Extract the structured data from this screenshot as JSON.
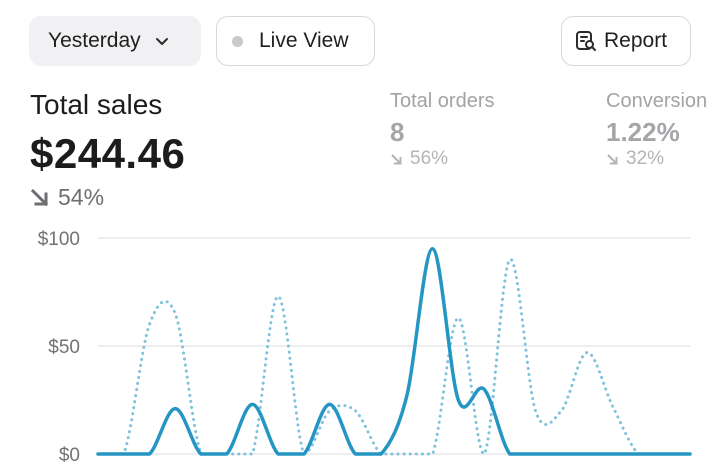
{
  "toolbar": {
    "date_range": "Yesterday",
    "live_view": "Live View",
    "report": "Report"
  },
  "metrics": {
    "total_sales": {
      "label": "Total sales",
      "value": "$244.46",
      "change": "54%",
      "direction": "down"
    },
    "total_orders": {
      "label": "Total orders",
      "value": "8",
      "change": "56%",
      "direction": "down"
    },
    "conversion": {
      "label": "Conversion",
      "value": "1.22%",
      "change": "32%",
      "direction": "down"
    }
  },
  "colors": {
    "series_current": "#2596c4",
    "series_previous": "#7dc2dc",
    "grid": "#e3e3e6"
  },
  "icons": {
    "date_chevron": "chevron-down-icon",
    "live_dot": "status-dot-icon",
    "report": "report-search-icon",
    "trend": "arrow-down-right-icon"
  },
  "chart_data": {
    "type": "line",
    "y_tick_labels": [
      "$100",
      "$50",
      "$0"
    ],
    "ylim": [
      0,
      100
    ],
    "xlim": [
      0,
      23
    ],
    "grid": true,
    "series": [
      {
        "style": "solid",
        "x": [
          0,
          1,
          2,
          3,
          4,
          5,
          6,
          7,
          8,
          9,
          10,
          11,
          12,
          13,
          14,
          15,
          16,
          17,
          18,
          19,
          20,
          21,
          22,
          23
        ],
        "values": [
          0,
          0,
          0,
          21,
          0,
          0,
          23,
          0,
          0,
          23,
          0,
          0,
          27,
          95,
          25,
          30,
          0,
          0,
          0,
          0,
          0,
          0,
          0,
          0
        ]
      },
      {
        "style": "dotted",
        "x": [
          0,
          1,
          2,
          3,
          4,
          5,
          6,
          7,
          8,
          9,
          10,
          11,
          12,
          13,
          14,
          15,
          16,
          17,
          18,
          19,
          20,
          21,
          22,
          23
        ],
        "values": [
          0,
          0,
          60,
          65,
          0,
          0,
          0,
          73,
          0,
          20,
          20,
          0,
          0,
          0,
          63,
          0,
          90,
          20,
          20,
          47,
          22,
          0,
          0,
          0
        ]
      }
    ]
  }
}
